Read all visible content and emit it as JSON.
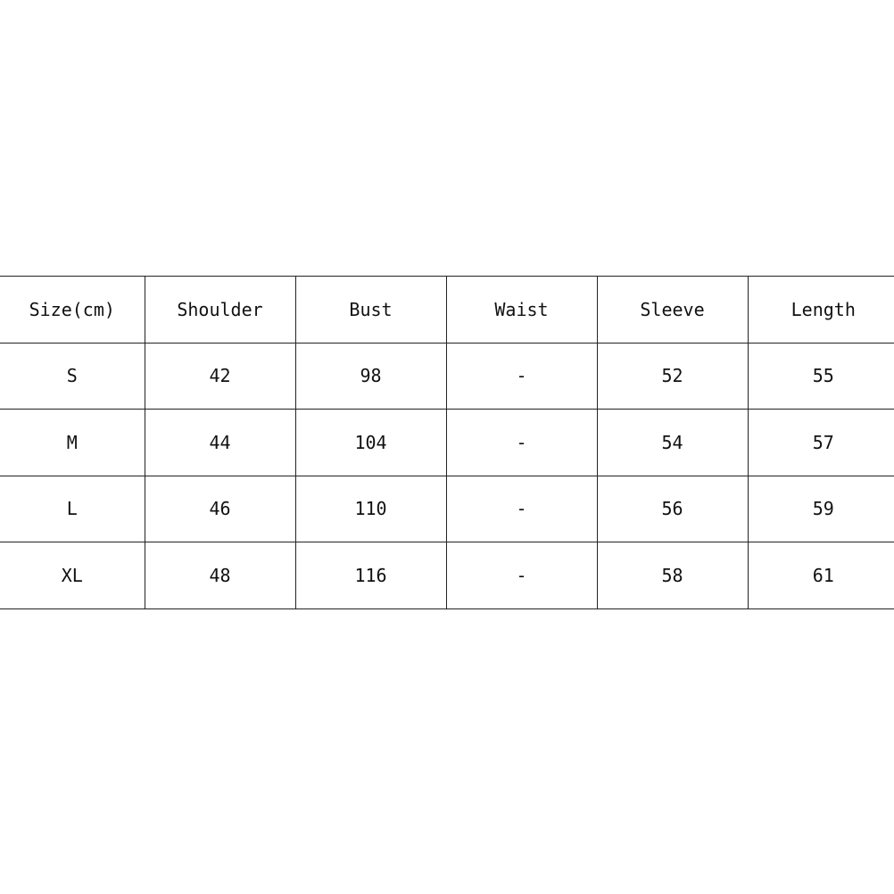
{
  "table": {
    "headers": [
      "Size(cm)",
      "Shoulder",
      "Bust",
      "Waist",
      "Sleeve",
      "Length"
    ],
    "rows": [
      [
        "S",
        "42",
        "98",
        "-",
        "52",
        "55"
      ],
      [
        "M",
        "44",
        "104",
        "-",
        "54",
        "57"
      ],
      [
        "L",
        "46",
        "110",
        "-",
        "56",
        "59"
      ],
      [
        "XL",
        "48",
        "116",
        "-",
        "58",
        "61"
      ]
    ]
  }
}
